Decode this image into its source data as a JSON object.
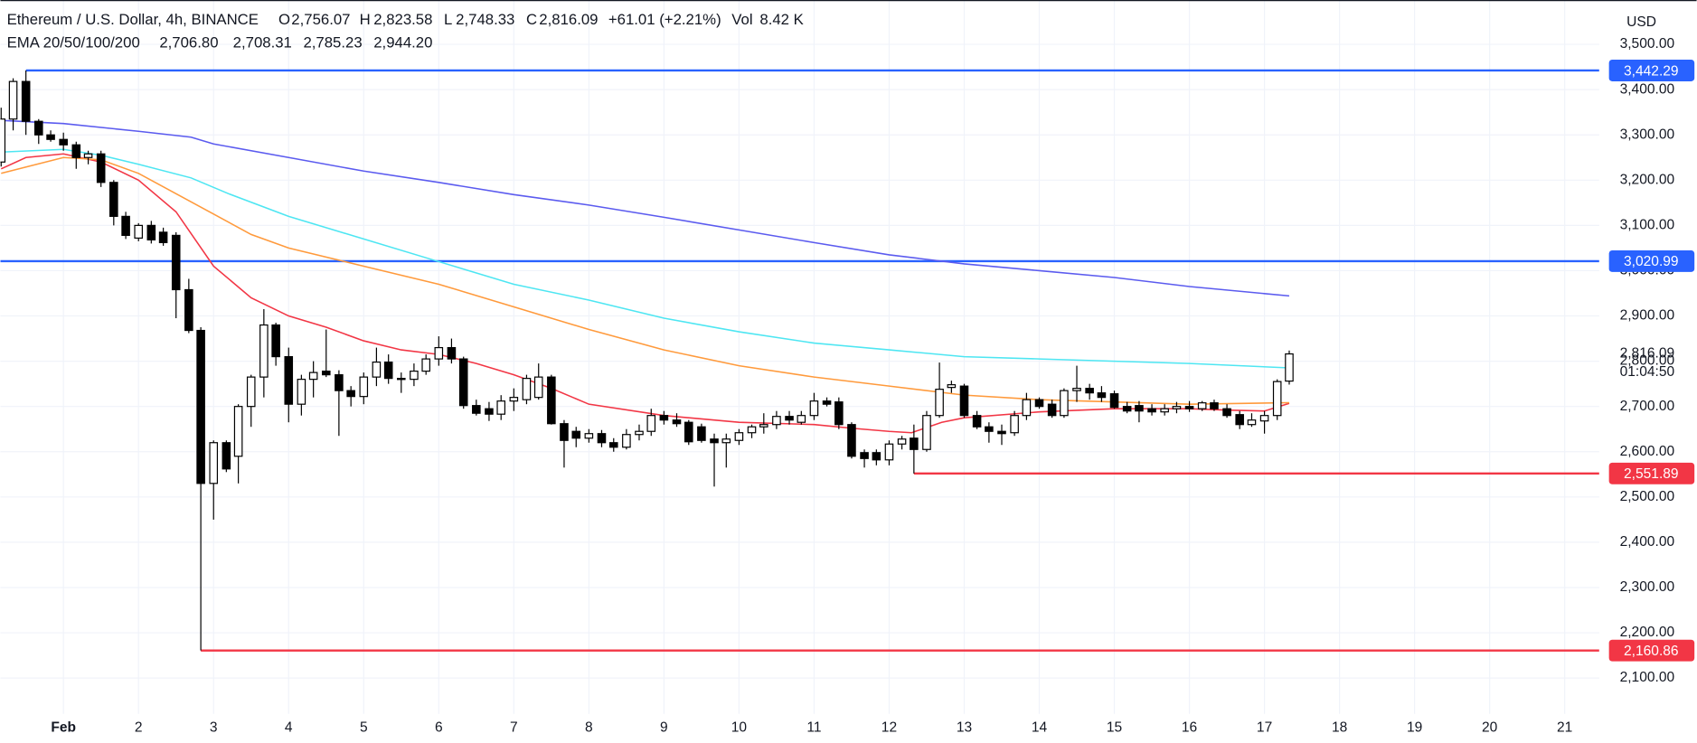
{
  "header": {
    "symbol": "Ethereum / U.S. Dollar, 4h, BINANCE",
    "ohlc": [
      {
        "key": "O",
        "value": "2,756.07"
      },
      {
        "key": "H",
        "value": "2,823.58"
      },
      {
        "key": "L",
        "value": "2,748.33"
      },
      {
        "key": "C",
        "value": "2,816.09"
      }
    ],
    "change": "+61.01 (+2.21%)",
    "volume_key": "Vol",
    "volume": "8.42 K",
    "indicator": "EMA 20/50/100/200",
    "indicator_values": [
      "2,706.80",
      "2,708.31",
      "2,785.23",
      "2,944.20"
    ]
  },
  "currency_button": "USD",
  "chart_data": {
    "type": "candlestick",
    "x": [
      0.17,
      0.33,
      0.5,
      0.67,
      0.83,
      1,
      1.17,
      1.33,
      1.5,
      1.67,
      1.83,
      2,
      2.17,
      2.33,
      2.5,
      2.67,
      2.83,
      3,
      3.17,
      3.33,
      3.5,
      3.67,
      3.83,
      4,
      4.17,
      4.33,
      4.5,
      4.67,
      4.83,
      5,
      5.17,
      5.33,
      5.5,
      5.67,
      5.83,
      6,
      6.17,
      6.33,
      6.5,
      6.67,
      6.83,
      7,
      7.17,
      7.33,
      7.5,
      7.67,
      7.83,
      8,
      8.17,
      8.33,
      8.5,
      8.67,
      8.83,
      9,
      9.17,
      9.33,
      9.5,
      9.67,
      9.83,
      10,
      10.17,
      10.33,
      10.5,
      10.67,
      10.83,
      11,
      11.17,
      11.33,
      11.5,
      11.67,
      11.83,
      12,
      12.17,
      12.33,
      12.5,
      12.67,
      12.83,
      13,
      13.17,
      13.33,
      13.5,
      13.67,
      13.83,
      14,
      14.17,
      14.33,
      14.5,
      14.67,
      14.83,
      15,
      15.17,
      15.33,
      15.5,
      15.67,
      15.83,
      16,
      16.17,
      16.33,
      16.5,
      16.67,
      16.83,
      17,
      17.17,
      17.33
    ],
    "open": [
      3240,
      3335,
      3418,
      3330,
      3300,
      3290,
      3278,
      3250,
      3258,
      3195,
      3120,
      3072,
      3100,
      3085,
      3078,
      2958,
      2868,
      2530,
      2620,
      2590,
      2700,
      2765,
      2880,
      2810,
      2705,
      2760,
      2778,
      2770,
      2735,
      2722,
      2765,
      2798,
      2762,
      2760,
      2778,
      2805,
      2830,
      2805,
      2702,
      2695,
      2683,
      2712,
      2715,
      2720,
      2765,
      2662,
      2645,
      2630,
      2640,
      2620,
      2610,
      2638,
      2645,
      2680,
      2670,
      2665,
      2655,
      2628,
      2620,
      2625,
      2642,
      2655,
      2660,
      2678,
      2665,
      2680,
      2712,
      2710,
      2660,
      2598,
      2598,
      2582,
      2617,
      2630,
      2605,
      2680,
      2742,
      2745,
      2680,
      2655,
      2645,
      2642,
      2680,
      2715,
      2705,
      2680,
      2735,
      2740,
      2730,
      2728,
      2700,
      2702,
      2695,
      2688,
      2695,
      2700,
      2695,
      2708,
      2695,
      2682,
      2660,
      2668,
      2680,
      2756.07
    ],
    "high": [
      3360,
      3425,
      3442.29,
      3335,
      3310,
      3305,
      3285,
      3265,
      3265,
      3200,
      3130,
      3105,
      3110,
      3095,
      3085,
      2982,
      2875,
      2625,
      2625,
      2705,
      2770,
      2915,
      2885,
      2830,
      2770,
      2800,
      2870,
      2780,
      2745,
      2775,
      2830,
      2815,
      2775,
      2795,
      2815,
      2855,
      2850,
      2810,
      2715,
      2710,
      2725,
      2740,
      2770,
      2795,
      2770,
      2670,
      2655,
      2650,
      2648,
      2630,
      2650,
      2660,
      2695,
      2690,
      2685,
      2670,
      2662,
      2640,
      2640,
      2650,
      2660,
      2685,
      2690,
      2690,
      2690,
      2730,
      2720,
      2720,
      2665,
      2605,
      2605,
      2625,
      2635,
      2660,
      2690,
      2797,
      2757,
      2750,
      2690,
      2665,
      2660,
      2690,
      2730,
      2720,
      2715,
      2740,
      2790,
      2750,
      2745,
      2735,
      2710,
      2712,
      2705,
      2705,
      2710,
      2712,
      2712,
      2715,
      2705,
      2690,
      2685,
      2690,
      2760,
      2823.58
    ],
    "low": [
      3230,
      3310,
      3300,
      3280,
      3285,
      3265,
      3225,
      3235,
      3185,
      3100,
      3070,
      3065,
      3060,
      3055,
      2895,
      2862,
      2160.86,
      2450,
      2555,
      2530,
      2655,
      2720,
      2790,
      2665,
      2680,
      2720,
      2765,
      2635,
      2700,
      2705,
      2745,
      2750,
      2730,
      2745,
      2770,
      2790,
      2795,
      2695,
      2680,
      2668,
      2670,
      2690,
      2705,
      2715,
      2660,
      2565,
      2610,
      2620,
      2610,
      2600,
      2605,
      2625,
      2635,
      2660,
      2655,
      2615,
      2620,
      2523,
      2565,
      2615,
      2630,
      2640,
      2650,
      2660,
      2660,
      2670,
      2700,
      2650,
      2585,
      2565,
      2570,
      2570,
      2605,
      2551.89,
      2600,
      2675,
      2730,
      2675,
      2650,
      2620,
      2615,
      2635,
      2670,
      2695,
      2675,
      2675,
      2710,
      2715,
      2710,
      2695,
      2685,
      2665,
      2680,
      2680,
      2685,
      2688,
      2690,
      2690,
      2675,
      2650,
      2655,
      2640,
      2670,
      2748.33
    ],
    "close": [
      3335,
      3418,
      3330,
      3300,
      3290,
      3278,
      3250,
      3258,
      3195,
      3120,
      3078,
      3100,
      3068,
      3062,
      2958,
      2868,
      2530,
      2620,
      2562,
      2700,
      2765,
      2880,
      2810,
      2705,
      2760,
      2775,
      2770,
      2735,
      2722,
      2765,
      2798,
      2762,
      2760,
      2778,
      2805,
      2830,
      2805,
      2702,
      2685,
      2683,
      2712,
      2720,
      2762,
      2765,
      2662,
      2625,
      2630,
      2640,
      2620,
      2610,
      2638,
      2645,
      2680,
      2670,
      2662,
      2622,
      2625,
      2620,
      2628,
      2642,
      2655,
      2660,
      2678,
      2670,
      2680,
      2712,
      2705,
      2660,
      2590,
      2585,
      2582,
      2617,
      2628,
      2605,
      2680,
      2738,
      2748,
      2680,
      2655,
      2645,
      2640,
      2680,
      2715,
      2700,
      2680,
      2735,
      2740,
      2730,
      2720,
      2698,
      2690,
      2690,
      2688,
      2695,
      2700,
      2695,
      2708,
      2695,
      2680,
      2660,
      2670,
      2680,
      2755,
      2816.09
    ],
    "up_color": "#ffffff",
    "down_color": "#000000",
    "series": [
      {
        "name": "EMA 20",
        "color": "#f23645",
        "x": [
          0.17,
          0.5,
          1,
          1.5,
          2,
          2.5,
          3,
          3.5,
          4,
          4.5,
          5,
          5.5,
          6,
          6.5,
          7,
          7.5,
          8,
          9,
          10,
          11,
          11.5,
          12,
          12.3,
          12.7,
          13,
          14,
          15,
          16,
          16.5,
          17,
          17.33
        ],
        "values": [
          3225,
          3250,
          3258,
          3240,
          3200,
          3130,
          3010,
          2940,
          2900,
          2875,
          2845,
          2825,
          2815,
          2795,
          2770,
          2740,
          2705,
          2680,
          2665,
          2660,
          2652,
          2645,
          2642,
          2665,
          2675,
          2688,
          2695,
          2695,
          2692,
          2690,
          2706.8
        ]
      },
      {
        "name": "EMA 50",
        "color": "#ff9a3c",
        "x": [
          0.17,
          1,
          1.5,
          2,
          2.5,
          3,
          3.5,
          4,
          5,
          6,
          7,
          8,
          9,
          10,
          11,
          12,
          13,
          14,
          15,
          16,
          17.33
        ],
        "values": [
          3215,
          3250,
          3245,
          3215,
          3170,
          3125,
          3080,
          3050,
          3010,
          2970,
          2920,
          2870,
          2825,
          2790,
          2765,
          2745,
          2725,
          2715,
          2710,
          2705,
          2708.31
        ]
      },
      {
        "name": "EMA 100",
        "color": "#4ee6f2",
        "x": [
          0.17,
          1,
          1.5,
          2,
          2.7,
          3.2,
          4,
          5,
          6,
          7,
          8,
          9,
          10,
          11,
          12,
          13,
          14,
          15,
          16,
          17.33
        ],
        "values": [
          3262,
          3268,
          3255,
          3235,
          3205,
          3170,
          3120,
          3070,
          3020,
          2970,
          2935,
          2895,
          2865,
          2840,
          2825,
          2810,
          2805,
          2800,
          2795,
          2785.23
        ]
      },
      {
        "name": "EMA 200",
        "color": "#5b5bef",
        "x": [
          0.17,
          1,
          2,
          2.7,
          3,
          4,
          5,
          6,
          7,
          8,
          9,
          10,
          11,
          12,
          13,
          14,
          15,
          16,
          17.33
        ],
        "values": [
          3332,
          3325,
          3308,
          3295,
          3280,
          3250,
          3220,
          3195,
          3168,
          3145,
          3118,
          3090,
          3062,
          3035,
          3015,
          3000,
          2985,
          2965,
          2944.2
        ]
      }
    ],
    "hlines": [
      {
        "value": 3442.29,
        "label": "3,442.29",
        "color": "#2962ff",
        "x_start": 0.5
      },
      {
        "value": 3020.99,
        "label": "3,020.99",
        "color": "#2962ff"
      },
      {
        "value": 2551.89,
        "label": "2,551.89",
        "color": "#f23645",
        "x_start": 12.33
      },
      {
        "value": 2160.86,
        "label": "2,160.86",
        "color": "#f23645",
        "x_start": 2.83
      }
    ],
    "last_price_label": "2,816.09",
    "countdown": "01:04:50",
    "xlim": [
      0.16,
      21.46
    ],
    "ylim": [
      2021,
      3598
    ],
    "xticks": [
      {
        "value": 1,
        "label": "Feb"
      },
      2,
      3,
      4,
      5,
      6,
      7,
      8,
      9,
      10,
      11,
      12,
      13,
      14,
      15,
      16,
      17,
      18,
      19,
      20,
      21
    ],
    "yticks": [
      {
        "value": 2100,
        "label": "2,100.00"
      },
      {
        "value": 2200,
        "label": "2,200.00"
      },
      {
        "value": 2300,
        "label": "2,300.00"
      },
      {
        "value": 2400,
        "label": "2,400.00"
      },
      {
        "value": 2500,
        "label": "2,500.00"
      },
      {
        "value": 2600,
        "label": "2,600.00"
      },
      {
        "value": 2700,
        "label": "2,700.00"
      },
      {
        "value": 2800,
        "label": "2,800.00"
      },
      {
        "value": 2900,
        "label": "2,900.00"
      },
      {
        "value": 3000,
        "label": "3,000.00"
      },
      {
        "value": 3100,
        "label": "3,100.00"
      },
      {
        "value": 3200,
        "label": "3,200.00"
      },
      {
        "value": 3300,
        "label": "3,300.00"
      },
      {
        "value": 3400,
        "label": "3,400.00"
      },
      {
        "value": 3500,
        "label": "3,500.00"
      }
    ],
    "grid": true
  }
}
